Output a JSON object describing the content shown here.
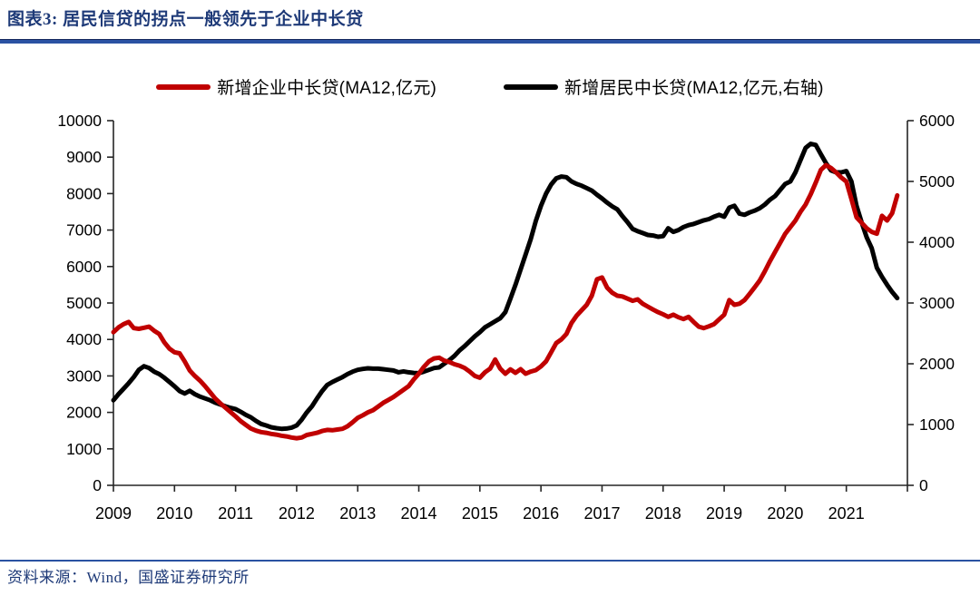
{
  "header": {
    "title": "图表3:  居民信贷的拐点一般领先于企业中长贷"
  },
  "footer": {
    "source": "资料来源：Wind，国盛证券研究所"
  },
  "colors": {
    "title_blue": "#1e3a78",
    "rule_blue": "#2a52a2",
    "corporate_red": "#c00000",
    "household_black": "#000000",
    "axis_color": "#262626"
  },
  "legend": [
    {
      "label": "新增企业中长贷(MA12,亿元)"
    },
    {
      "label": "新增居民中长贷(MA12,亿元,右轴)"
    }
  ],
  "chart_data": {
    "type": "line",
    "title": "居民信贷的拐点一般领先于企业中长贷",
    "grid": false,
    "legend_position": "top",
    "x_axis": {
      "labels": [
        "2009",
        "2010",
        "2011",
        "2012",
        "2013",
        "2014",
        "2015",
        "2016",
        "2017",
        "2018",
        "2019",
        "2020",
        "2021"
      ],
      "start_year": 2009,
      "end_year": 2022
    },
    "left_axis": {
      "min": 0,
      "max": 10000,
      "step": 1000,
      "ticks": [
        "0",
        "1000",
        "2000",
        "3000",
        "4000",
        "5000",
        "6000",
        "7000",
        "8000",
        "9000",
        "10000"
      ]
    },
    "right_axis": {
      "min": 0,
      "max": 6000,
      "step": 1000,
      "ticks": [
        "0",
        "1000",
        "2000",
        "3000",
        "4000",
        "5000",
        "6000"
      ]
    },
    "series": [
      {
        "name": "新增企业中长贷(MA12,亿元)",
        "axis": "left",
        "color": "#c00000",
        "start_year": 2009,
        "points_per_year": 12,
        "values": [
          4200,
          4330,
          4420,
          4480,
          4310,
          4290,
          4320,
          4350,
          4240,
          4150,
          3920,
          3750,
          3650,
          3620,
          3400,
          3150,
          3000,
          2870,
          2720,
          2550,
          2380,
          2250,
          2130,
          2010,
          1890,
          1760,
          1660,
          1560,
          1500,
          1460,
          1440,
          1410,
          1390,
          1360,
          1340,
          1310,
          1290,
          1310,
          1380,
          1410,
          1440,
          1490,
          1520,
          1510,
          1530,
          1550,
          1620,
          1730,
          1850,
          1920,
          2000,
          2060,
          2160,
          2260,
          2340,
          2420,
          2520,
          2620,
          2720,
          2900,
          3060,
          3250,
          3400,
          3480,
          3500,
          3420,
          3380,
          3320,
          3280,
          3220,
          3120,
          3000,
          2950,
          3100,
          3200,
          3450,
          3200,
          3060,
          3180,
          3085,
          3184,
          3060,
          3120,
          3160,
          3260,
          3400,
          3650,
          3900,
          4000,
          4150,
          4450,
          4650,
          4800,
          4950,
          5200,
          5650,
          5700,
          5420,
          5280,
          5200,
          5180,
          5120,
          5060,
          5100,
          4980,
          4900,
          4820,
          4750,
          4690,
          4620,
          4680,
          4610,
          4560,
          4620,
          4480,
          4350,
          4310,
          4360,
          4420,
          4550,
          4680,
          5080,
          4950,
          4980,
          5080,
          5250,
          5430,
          5620,
          5870,
          6150,
          6400,
          6650,
          6900,
          7080,
          7260,
          7500,
          7700,
          7980,
          8300,
          8650,
          8780,
          8700,
          8580,
          8440,
          8330,
          7850,
          7350,
          7200,
          7050,
          6950,
          6900,
          7390,
          7260,
          7460,
          7950
        ]
      },
      {
        "name": "新增居民中长贷(MA12,亿元,右轴)",
        "axis": "right",
        "color": "#000000",
        "start_year": 2009,
        "points_per_year": 12,
        "values": [
          1400,
          1500,
          1590,
          1680,
          1780,
          1900,
          1960,
          1930,
          1870,
          1830,
          1770,
          1700,
          1630,
          1550,
          1510,
          1555,
          1500,
          1460,
          1430,
          1400,
          1360,
          1330,
          1300,
          1275,
          1255,
          1210,
          1160,
          1120,
          1060,
          1010,
          985,
          955,
          940,
          930,
          935,
          950,
          985,
          1080,
          1200,
          1300,
          1430,
          1550,
          1650,
          1700,
          1740,
          1780,
          1830,
          1870,
          1900,
          1915,
          1925,
          1920,
          1920,
          1910,
          1900,
          1890,
          1860,
          1875,
          1860,
          1850,
          1845,
          1870,
          1900,
          1930,
          1940,
          2000,
          2060,
          2130,
          2220,
          2290,
          2370,
          2450,
          2520,
          2600,
          2650,
          2700,
          2750,
          2850,
          3070,
          3300,
          3550,
          3800,
          4050,
          4350,
          4600,
          4800,
          4950,
          5050,
          5080,
          5070,
          5000,
          4960,
          4930,
          4890,
          4850,
          4780,
          4720,
          4650,
          4590,
          4540,
          4430,
          4330,
          4220,
          4180,
          4150,
          4120,
          4110,
          4090,
          4100,
          4230,
          4170,
          4200,
          4250,
          4280,
          4300,
          4330,
          4360,
          4380,
          4420,
          4450,
          4420,
          4570,
          4600,
          4470,
          4450,
          4490,
          4520,
          4560,
          4620,
          4700,
          4760,
          4860,
          4960,
          5000,
          5150,
          5350,
          5550,
          5620,
          5600,
          5450,
          5300,
          5180,
          5150,
          5150,
          5170,
          5000,
          4600,
          4330,
          4080,
          3900,
          3580,
          3430,
          3300,
          3180,
          3080
        ]
      }
    ]
  }
}
